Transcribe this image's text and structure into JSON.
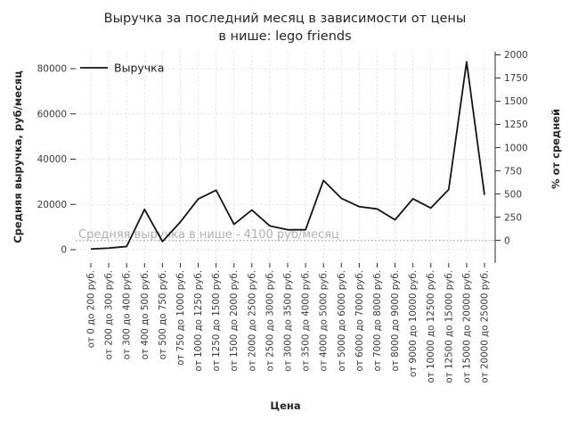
{
  "chart_data": {
    "type": "line",
    "title_lines": [
      "Выручка за последний месяц в зависимости от цены",
      "в нише: lego friends"
    ],
    "xlabel": "Цена",
    "ylabel_left": "Средняя выручка, руб/месяц",
    "ylabel_right": "% от средней",
    "legend": [
      {
        "label": "Выручка"
      }
    ],
    "categories": [
      "от 0 до 200 руб.",
      "от 200 до 300 руб.",
      "от 300 до 400 руб.",
      "от 400 до 500 руб.",
      "от 500 до 750 руб.",
      "от 750 до 1000 руб.",
      "от 1000 до 1250 руб.",
      "от 1250 до 1500 руб.",
      "от 1500 до 2000 руб.",
      "от 2000 до 2500 руб.",
      "от 2500 до 3000 руб.",
      "от 3000 до 3500 руб.",
      "от 3500 до 4000 руб.",
      "от 4000 до 5000 руб.",
      "от 5000 до 6000 руб.",
      "от 6000 до 7000 руб.",
      "от 7000 до 8000 руб.",
      "от 8000 до 9000 руб.",
      "от 9000 до 10000 руб.",
      "от 10000 до 12500 руб.",
      "от 12500 до 15000 руб.",
      "от 15000 до 20000 руб.",
      "от 20000 до 25000 руб."
    ],
    "series": [
      {
        "name": "Выручка",
        "values": [
          300,
          700,
          1400,
          17800,
          3600,
          12200,
          22400,
          26300,
          11200,
          17500,
          10500,
          8800,
          8800,
          30600,
          22700,
          19000,
          18000,
          13200,
          22500,
          18400,
          26600,
          83000,
          24200
        ]
      }
    ],
    "left_axis": {
      "ticks": [
        0,
        20000,
        40000,
        60000,
        80000
      ],
      "range": [
        0,
        87000
      ]
    },
    "right_axis": {
      "ticks": [
        0,
        250,
        500,
        750,
        1000,
        1250,
        1500,
        1750,
        2000
      ],
      "unit": "%",
      "meaning": "percent deviation from niche average"
    },
    "average_line": {
      "value": 4100,
      "label": "Средняя выручка в нише - 4100 руб/месяц"
    },
    "grid": true,
    "legend_position": "upper-left",
    "colors": {
      "line": "#141414",
      "grid": "#dedede",
      "average_line": "#a6a6a6",
      "annotation_text": "#b0b0b0",
      "tick_text": "#3a3a3a",
      "label_text": "#262626",
      "spine": "#2b2b2b",
      "background": "#ffffff"
    }
  }
}
